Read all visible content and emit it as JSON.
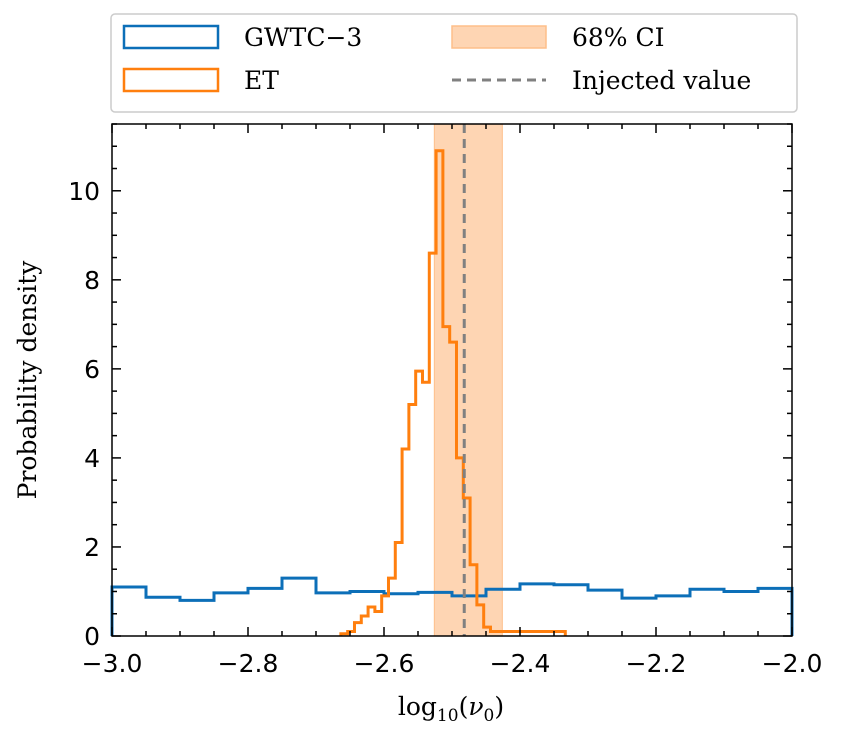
{
  "chart_data": {
    "type": "histogram",
    "xlabel": "log₁₀(ν₀)",
    "ylabel": "Probability density",
    "xlim": [
      -3.0,
      -2.0
    ],
    "ylim": [
      0,
      11.5
    ],
    "x_ticks": [
      -3.0,
      -2.8,
      -2.6,
      -2.4,
      -2.2,
      -2.0
    ],
    "x_tick_labels": [
      "−3.0",
      "−2.8",
      "−2.6",
      "−2.4",
      "−2.2",
      "−2.0"
    ],
    "y_ticks": [
      0,
      2,
      4,
      6,
      8,
      10
    ],
    "y_tick_labels": [
      "0",
      "2",
      "4",
      "6",
      "8",
      "10"
    ],
    "series": [
      {
        "name": "GWTC−3",
        "color": "#0C6FB8",
        "bin_edges": [
          -3.0,
          -2.95,
          -2.9,
          -2.85,
          -2.8,
          -2.75,
          -2.7,
          -2.65,
          -2.6,
          -2.55,
          -2.5,
          -2.45,
          -2.4,
          -2.35,
          -2.3,
          -2.25,
          -2.2,
          -2.15,
          -2.1,
          -2.05,
          -2.0
        ],
        "values": [
          1.1,
          0.87,
          0.8,
          0.97,
          1.07,
          1.3,
          0.97,
          1.0,
          0.95,
          0.98,
          0.9,
          1.05,
          1.17,
          1.15,
          1.03,
          0.85,
          0.9,
          1.05,
          1.0,
          1.07
        ]
      },
      {
        "name": "ET",
        "color": "#FF7F0E",
        "bin_edges": [
          -2.6634,
          -2.6534,
          -2.6434,
          -2.6334,
          -2.6234,
          -2.6134,
          -2.6034,
          -2.5934,
          -2.5834,
          -2.5734,
          -2.5634,
          -2.5534,
          -2.5434,
          -2.5334,
          -2.5234,
          -2.5134,
          -2.5034,
          -2.4934,
          -2.4834,
          -2.4734,
          -2.4634,
          -2.4534,
          -2.4434,
          -2.4334,
          -2.4234,
          -2.4134,
          -2.4034,
          -2.3934,
          -2.3834,
          -2.3734,
          -2.3634,
          -2.3534,
          -2.3434,
          -2.3334
        ],
        "values": [
          0.05,
          0.1,
          0.3,
          0.45,
          0.65,
          0.55,
          0.9,
          1.3,
          2.1,
          4.2,
          5.2,
          5.95,
          5.7,
          8.6,
          10.9,
          6.95,
          6.6,
          4.0,
          3.1,
          1.6,
          0.7,
          0.2,
          0.1,
          0.1,
          0.1,
          0.1,
          0.1,
          0.1,
          0.1,
          0.1,
          0.1,
          0.1,
          0.1
        ],
        "values_trimmed": true
      }
    ],
    "ci_band": {
      "label": "68% CI",
      "range": [
        -2.526,
        -2.426
      ],
      "color": "#FDBF8A"
    },
    "injected_value": {
      "label": "Injected value",
      "x": -2.482,
      "color": "#808080"
    },
    "legend": {
      "placement": "top, outside",
      "entries": [
        "GWTC−3",
        "68% CI",
        "ET",
        "Injected value"
      ]
    }
  }
}
